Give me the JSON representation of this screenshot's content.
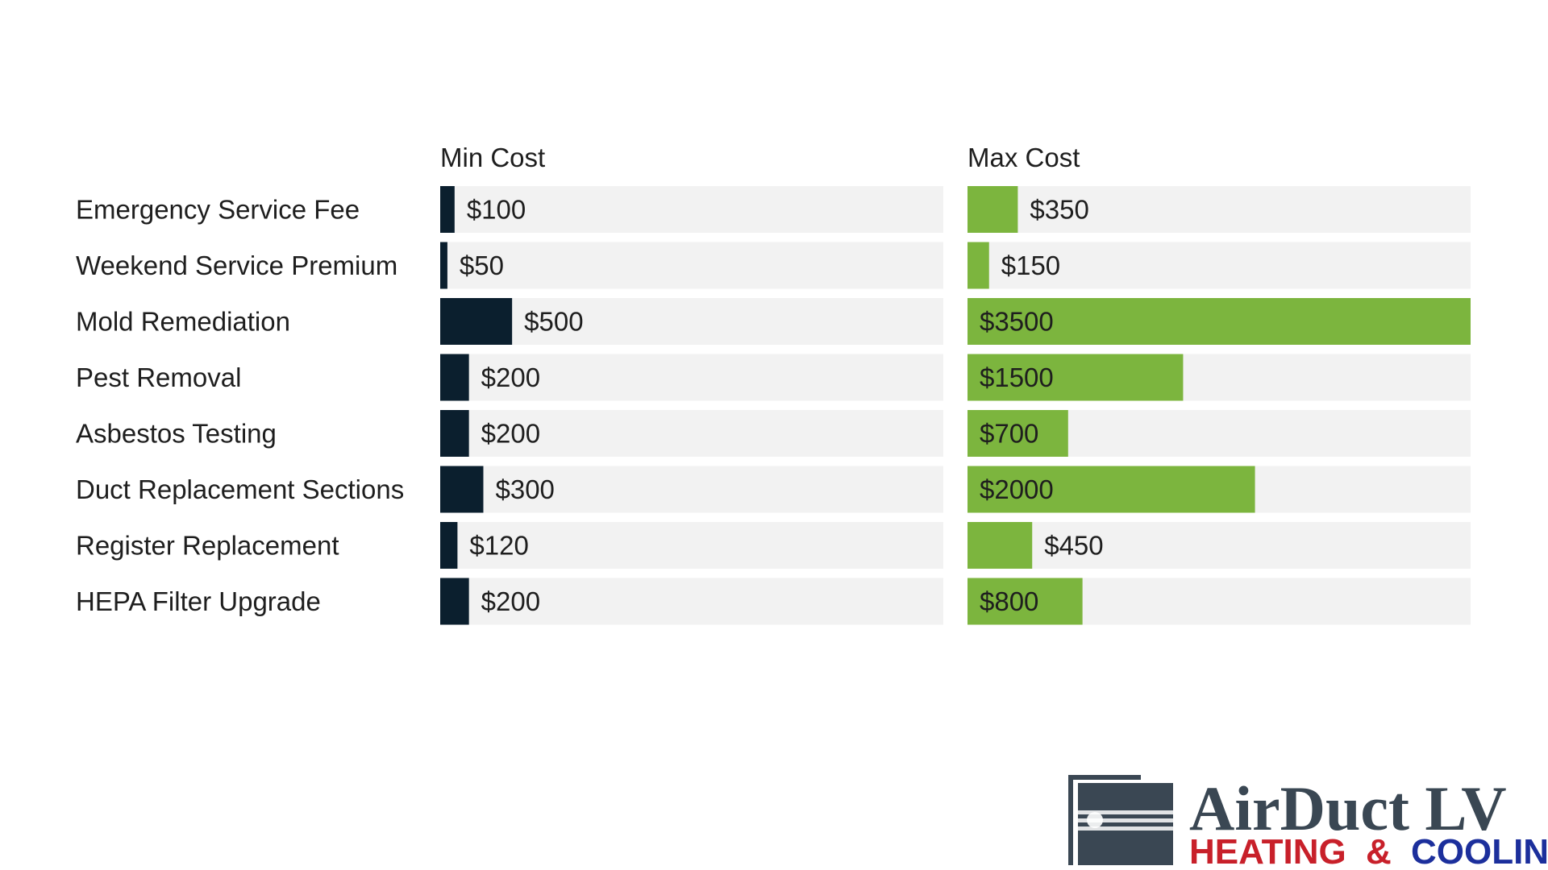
{
  "chart_data": {
    "type": "bar",
    "categories": [
      "Emergency Service Fee",
      "Weekend Service Premium",
      "Mold Remediation",
      "Pest Removal",
      "Asbestos Testing",
      "Duct Replacement Sections",
      "Register Replacement",
      "HEPA Filter Upgrade"
    ],
    "series": [
      {
        "name": "Min Cost",
        "values": [
          100,
          50,
          500,
          200,
          200,
          300,
          120,
          200
        ],
        "color": "#0b1f2e",
        "max": 3500
      },
      {
        "name": "Max Cost",
        "values": [
          350,
          150,
          3500,
          1500,
          700,
          2000,
          450,
          800
        ],
        "color": "#7cb53e",
        "max": 3500
      }
    ],
    "value_prefix": "$",
    "track_color": "#f2f2f2"
  },
  "logo": {
    "line1": "AirDuct LV",
    "line2a": "HEATING",
    "line2b": "&",
    "line2c": "COOLING",
    "colors": {
      "dark": "#3a4753",
      "red": "#c8202a",
      "blue": "#1c2f9c"
    }
  }
}
